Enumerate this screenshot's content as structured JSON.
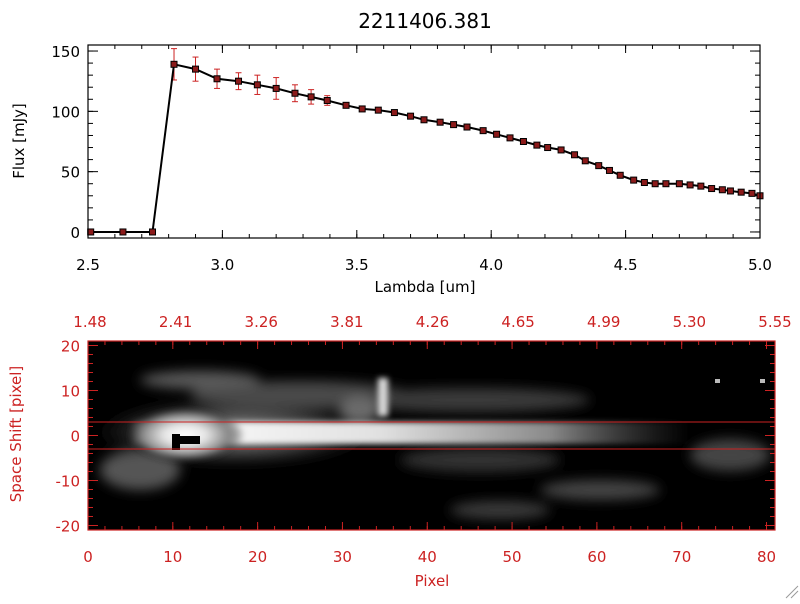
{
  "colors": {
    "spectrum_line": "#000000",
    "data_marker": "#8b1a1a",
    "error_bar": "#cc2222",
    "image_axes": "#cc2222",
    "background": "#ffffff"
  },
  "chart_data": [
    {
      "type": "line",
      "title": "2211406.381",
      "xlabel": "Lambda [um]",
      "ylabel": "Flux [mJy]",
      "xlim": [
        2.5,
        5.0
      ],
      "ylim": [
        -5,
        155
      ],
      "xticks": [
        "2.5",
        "3.0",
        "3.5",
        "4.0",
        "4.5",
        "5.0"
      ],
      "xtick_values": [
        2.5,
        3.0,
        3.5,
        4.0,
        4.5,
        5.0
      ],
      "yticks": [
        "0",
        "50",
        "100",
        "150"
      ],
      "ytick_values": [
        0,
        50,
        100,
        150
      ],
      "series": [
        {
          "x": [
            2.51,
            2.63,
            2.74,
            2.82,
            2.9,
            2.98,
            3.06,
            3.13,
            3.2,
            3.27,
            3.33,
            3.39,
            3.46,
            3.52,
            3.58,
            3.64,
            3.7,
            3.75,
            3.81,
            3.86,
            3.91,
            3.97,
            4.02,
            4.07,
            4.12,
            4.17,
            4.21,
            4.26,
            4.31,
            4.35,
            4.4,
            4.44,
            4.48,
            4.53,
            4.57,
            4.61,
            4.65,
            4.7,
            4.74,
            4.78,
            4.82,
            4.86,
            4.89,
            4.93,
            4.97,
            5.0
          ],
          "y": [
            0,
            0,
            0,
            139,
            135,
            127,
            125,
            122,
            119,
            115,
            112,
            109,
            105,
            102,
            101,
            99,
            96,
            93,
            91,
            89,
            87,
            84,
            81,
            78,
            75,
            72,
            70,
            68,
            64,
            59,
            55,
            51,
            47,
            43,
            41,
            40,
            40,
            40,
            39,
            38,
            36,
            35,
            34,
            33,
            32,
            30
          ],
          "yerr": [
            0,
            0,
            0,
            13,
            10,
            8,
            7,
            8,
            9,
            7,
            6,
            4,
            2,
            1,
            1,
            1,
            1,
            1,
            1,
            1,
            1,
            1,
            1,
            1,
            1,
            1,
            1,
            1,
            1,
            1,
            1,
            1,
            1,
            1,
            1,
            1,
            1,
            1,
            1,
            1,
            1,
            1,
            1,
            1,
            1,
            1
          ]
        }
      ],
      "grid": false
    },
    {
      "type": "heatmap",
      "xlabel": "Pixel",
      "ylabel": "Space Shift [pixel]",
      "xlim": [
        0,
        81
      ],
      "ylim": [
        -21,
        21
      ],
      "xticks": [
        "0",
        "10",
        "20",
        "30",
        "40",
        "50",
        "60",
        "70",
        "80"
      ],
      "xtick_values": [
        0,
        10,
        20,
        30,
        40,
        50,
        60,
        70,
        80
      ],
      "yticks": [
        "-20",
        "-10",
        "0",
        "10",
        "20"
      ],
      "ytick_values": [
        -20,
        -10,
        0,
        10,
        20
      ],
      "top_axis_labels": [
        "1.48",
        "2.41",
        "3.26",
        "3.81",
        "4.26",
        "4.65",
        "4.99",
        "5.30",
        "5.55"
      ],
      "extraction_window": [
        -3,
        3
      ],
      "colormap": "grayscale",
      "grid": false
    }
  ]
}
